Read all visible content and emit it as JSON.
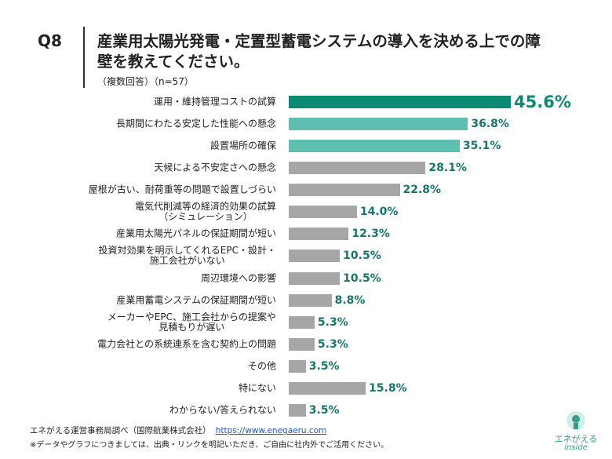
{
  "question": "Q8",
  "title": "産業用太陽光発電・定置型蓄電システムの導入を決める上での障\n壁を教えてください。",
  "subtitle": "（複数回答）（n=57）",
  "chart_data": {
    "type": "barh",
    "categories": [
      "運用・維持管理コストの試算",
      "長期間にわたる安定した性能への懸念",
      "設置場所の確保",
      "天候による不安定さへの懸念",
      "屋根が古い、耐荷重等の問題で設置しづらい",
      "電気代削減等の経済的効果の試算\n（シミュレーション）",
      "産業用太陽光パネルの保証期間が短い",
      "投資対効果を明示してくれるEPC・設計・\n施工会社がいない",
      "周辺環境への影響",
      "産業用蓄電システムの保証期間が短い",
      "メーカーやEPC、施工会社からの提案や\n見積もりが遅い",
      "電力会社との系統連系を含む契約上の問題",
      "その他",
      "特にない",
      "わからない/答えられない"
    ],
    "values": [
      45.6,
      36.8,
      35.1,
      28.1,
      22.8,
      14.0,
      12.3,
      10.5,
      10.5,
      8.8,
      5.3,
      5.3,
      3.5,
      15.8,
      3.5
    ],
    "value_labels": [
      "45.6%",
      "36.8%",
      "35.1%",
      "28.1%",
      "22.8%",
      "14.0%",
      "12.3%",
      "10.5%",
      "10.5%",
      "8.8%",
      "5.3%",
      "5.3%",
      "3.5%",
      "15.8%",
      "3.5%"
    ],
    "colors": [
      "#0b8a72",
      "#5fc0b1",
      "#5fc0b1",
      "#a6a6a6",
      "#a6a6a6",
      "#a6a6a6",
      "#a6a6a6",
      "#a6a6a6",
      "#a6a6a6",
      "#a6a6a6",
      "#a6a6a6",
      "#a6a6a6",
      "#a6a6a6",
      "#a6a6a6",
      "#a6a6a6"
    ],
    "value_label_color": "#17766a"
  },
  "footer": {
    "source": "エネがえる運営事務局調べ（国際航業株式会社）",
    "link": "https://www.enegaeru.com",
    "note": "※データやグラフにつきましては、出典・リンクを明記いただき、ご自由に社内外でご活用ください。"
  },
  "logo": {
    "name": "エネがえる",
    "tagline": "inside"
  }
}
